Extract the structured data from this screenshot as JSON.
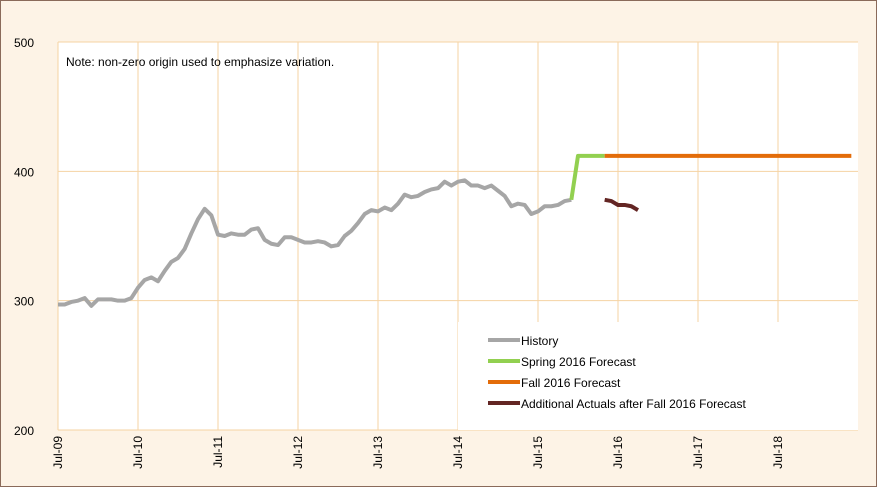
{
  "chart_data": {
    "type": "line",
    "annotations": [
      "Note: non-zero origin used to emphasize variation."
    ],
    "x": [
      "Jul-09",
      "Aug-09",
      "Sep-09",
      "Oct-09",
      "Nov-09",
      "Dec-09",
      "Jan-10",
      "Feb-10",
      "Mar-10",
      "Apr-10",
      "May-10",
      "Jun-10",
      "Jul-10",
      "Aug-10",
      "Sep-10",
      "Oct-10",
      "Nov-10",
      "Dec-10",
      "Jan-11",
      "Feb-11",
      "Mar-11",
      "Apr-11",
      "May-11",
      "Jun-11",
      "Jul-11",
      "Aug-11",
      "Sep-11",
      "Oct-11",
      "Nov-11",
      "Dec-11",
      "Jan-12",
      "Feb-12",
      "Mar-12",
      "Apr-12",
      "May-12",
      "Jun-12",
      "Jul-12",
      "Aug-12",
      "Sep-12",
      "Oct-12",
      "Nov-12",
      "Dec-12",
      "Jan-13",
      "Feb-13",
      "Mar-13",
      "Apr-13",
      "May-13",
      "Jun-13",
      "Jul-13",
      "Aug-13",
      "Sep-13",
      "Oct-13",
      "Nov-13",
      "Dec-13",
      "Jan-14",
      "Feb-14",
      "Mar-14",
      "Apr-14",
      "May-14",
      "Jun-14",
      "Jul-14",
      "Aug-14",
      "Sep-14",
      "Oct-14",
      "Nov-14",
      "Dec-14",
      "Jan-15",
      "Feb-15",
      "Mar-15",
      "Apr-15",
      "May-15",
      "Jun-15",
      "Jul-15",
      "Aug-15",
      "Sep-15",
      "Oct-15",
      "Nov-15",
      "Dec-15",
      "Jan-16",
      "Feb-16",
      "Mar-16",
      "Apr-16",
      "May-16",
      "Jun-16",
      "Jul-16",
      "Aug-16",
      "Sep-16",
      "Oct-16",
      "Nov-16",
      "Dec-16",
      "Jan-17",
      "Feb-17",
      "Mar-17",
      "Apr-17",
      "May-17",
      "Jun-17",
      "Jul-17",
      "Aug-17",
      "Sep-17",
      "Oct-17",
      "Nov-17",
      "Dec-17",
      "Jan-18",
      "Feb-18",
      "Mar-18",
      "Apr-18",
      "May-18",
      "Jun-18",
      "Jul-18",
      "Aug-18",
      "Sep-18",
      "Oct-18",
      "Nov-18",
      "Dec-18",
      "Jan-19",
      "Feb-19",
      "Mar-19",
      "Apr-19",
      "May-19",
      "Jun-19"
    ],
    "series": [
      {
        "name": "History",
        "color": "#a6a6a6",
        "values": [
          297,
          297,
          299,
          300,
          302,
          296,
          301,
          301,
          301,
          300,
          300,
          302,
          310,
          316,
          318,
          315,
          323,
          330,
          333,
          340,
          352,
          363,
          371,
          366,
          351,
          350,
          352,
          351,
          351,
          355,
          356,
          347,
          344,
          343,
          349,
          349,
          347,
          345,
          345,
          346,
          345,
          342,
          343,
          350,
          354,
          360,
          367,
          370,
          369,
          372,
          370,
          375,
          382,
          380,
          381,
          384,
          386,
          387,
          392,
          389,
          392,
          393,
          389,
          389,
          387,
          389,
          385,
          381,
          373,
          375,
          374,
          367,
          369,
          373,
          373,
          374,
          377,
          378,
          null,
          null,
          null,
          null,
          null,
          null,
          null,
          null,
          null,
          null,
          null,
          null,
          null,
          null,
          null,
          null,
          null,
          null,
          null,
          null,
          null,
          null,
          null,
          null,
          null,
          null,
          null,
          null,
          null,
          null,
          null,
          null,
          null,
          null,
          null,
          null,
          null,
          null,
          null,
          null,
          null,
          null
        ]
      },
      {
        "name": "Spring 2016 Forecast",
        "color": "#92d050",
        "values": [
          null,
          null,
          null,
          null,
          null,
          null,
          null,
          null,
          null,
          null,
          null,
          null,
          null,
          null,
          null,
          null,
          null,
          null,
          null,
          null,
          null,
          null,
          null,
          null,
          null,
          null,
          null,
          null,
          null,
          null,
          null,
          null,
          null,
          null,
          null,
          null,
          null,
          null,
          null,
          null,
          null,
          null,
          null,
          null,
          null,
          null,
          null,
          null,
          null,
          null,
          null,
          null,
          null,
          null,
          null,
          null,
          null,
          null,
          null,
          null,
          null,
          null,
          null,
          null,
          null,
          null,
          null,
          null,
          null,
          null,
          null,
          null,
          null,
          null,
          null,
          null,
          null,
          378,
          412,
          412,
          412,
          412,
          412,
          null,
          null,
          null,
          null,
          null,
          null,
          null,
          null,
          null,
          null,
          null,
          null,
          null,
          null,
          null,
          null,
          null,
          null,
          null,
          null,
          null,
          null,
          null,
          null,
          null,
          null,
          null,
          null,
          null,
          null,
          null,
          null,
          null,
          null,
          null,
          null,
          null
        ]
      },
      {
        "name": "Fall 2016 Forecast",
        "color": "#e36c09",
        "values": [
          null,
          null,
          null,
          null,
          null,
          null,
          null,
          null,
          null,
          null,
          null,
          null,
          null,
          null,
          null,
          null,
          null,
          null,
          null,
          null,
          null,
          null,
          null,
          null,
          null,
          null,
          null,
          null,
          null,
          null,
          null,
          null,
          null,
          null,
          null,
          null,
          null,
          null,
          null,
          null,
          null,
          null,
          null,
          null,
          null,
          null,
          null,
          null,
          null,
          null,
          null,
          null,
          null,
          null,
          null,
          null,
          null,
          null,
          null,
          null,
          null,
          null,
          null,
          null,
          null,
          null,
          null,
          null,
          null,
          null,
          null,
          null,
          null,
          null,
          null,
          null,
          null,
          null,
          null,
          null,
          null,
          null,
          412,
          412,
          412,
          412,
          412,
          412,
          412,
          412,
          412,
          412,
          412,
          412,
          412,
          412,
          412,
          412,
          412,
          412,
          412,
          412,
          412,
          412,
          412,
          412,
          412,
          412,
          412,
          412,
          412,
          412,
          412,
          412,
          412,
          412,
          412,
          412,
          412,
          412
        ]
      },
      {
        "name": "Additional Actuals after Fall 2016 Forecast",
        "color": "#632523",
        "values": [
          null,
          null,
          null,
          null,
          null,
          null,
          null,
          null,
          null,
          null,
          null,
          null,
          null,
          null,
          null,
          null,
          null,
          null,
          null,
          null,
          null,
          null,
          null,
          null,
          null,
          null,
          null,
          null,
          null,
          null,
          null,
          null,
          null,
          null,
          null,
          null,
          null,
          null,
          null,
          null,
          null,
          null,
          null,
          null,
          null,
          null,
          null,
          null,
          null,
          null,
          null,
          null,
          null,
          null,
          null,
          null,
          null,
          null,
          null,
          null,
          null,
          null,
          null,
          null,
          null,
          null,
          null,
          null,
          null,
          null,
          null,
          null,
          null,
          null,
          null,
          null,
          null,
          null,
          null,
          null,
          null,
          null,
          378,
          377,
          374,
          374,
          373,
          370,
          null,
          null,
          null,
          null,
          null,
          null,
          null,
          null,
          null,
          null,
          null,
          null,
          null,
          null,
          null,
          null,
          null,
          null,
          null,
          null,
          null,
          null,
          null,
          null,
          null,
          null,
          null,
          null,
          null,
          null,
          null,
          null
        ]
      }
    ],
    "xticks": [
      "Jul-09",
      "Jul-10",
      "Jul-11",
      "Jul-12",
      "Jul-13",
      "Jul-14",
      "Jul-15",
      "Jul-16",
      "Jul-17",
      "Jul-18"
    ],
    "ylim": [
      200,
      500
    ],
    "yticks": [
      200,
      300,
      400,
      500
    ],
    "grid": true,
    "gridcolor": "#f5d3a3",
    "legend": "lower right"
  }
}
